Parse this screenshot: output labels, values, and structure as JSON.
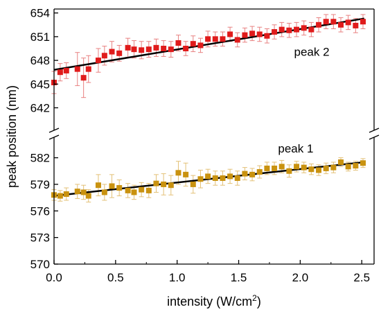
{
  "chart_data": {
    "type": "scatter",
    "xlabel": {
      "main": "intensity (W/cm",
      "sup": "2",
      "close": ")"
    },
    "ylabel": "peak position (nm)",
    "xlim": [
      0,
      2.6
    ],
    "x_ticks": [
      0.0,
      0.5,
      1.0,
      1.5,
      2.0,
      2.5
    ],
    "x_tick_labels": [
      "0.0",
      "0.5",
      "1.0",
      "1.5",
      "2.0",
      "2.5"
    ],
    "y_axis_break": true,
    "upper_panel": {
      "ylim": [
        639.5,
        654.5
      ],
      "y_ticks": [
        642,
        645,
        648,
        651,
        654
      ],
      "y_tick_labels": [
        "642",
        "645",
        "648",
        "651",
        "654"
      ]
    },
    "lower_panel": {
      "ylim": [
        570,
        584
      ],
      "y_ticks": [
        570,
        573,
        576,
        579,
        582
      ],
      "y_tick_labels": [
        "570",
        "573",
        "576",
        "579",
        "582"
      ]
    },
    "series": [
      {
        "name": "peak 2",
        "panel": "upper",
        "color": "#e01b1b",
        "error_color": "#e88080",
        "x": [
          0.0,
          0.05,
          0.1,
          0.19,
          0.24,
          0.28,
          0.36,
          0.41,
          0.47,
          0.53,
          0.6,
          0.65,
          0.71,
          0.77,
          0.83,
          0.89,
          0.95,
          1.01,
          1.07,
          1.13,
          1.19,
          1.25,
          1.31,
          1.37,
          1.43,
          1.49,
          1.55,
          1.61,
          1.67,
          1.73,
          1.79,
          1.85,
          1.91,
          1.97,
          2.03,
          2.09,
          2.15,
          2.21,
          2.27,
          2.33,
          2.39,
          2.45,
          2.51
        ],
        "y": [
          645.2,
          646.5,
          646.7,
          646.9,
          645.8,
          646.9,
          648.0,
          648.6,
          649.1,
          648.9,
          649.6,
          649.4,
          649.3,
          649.4,
          649.6,
          649.5,
          649.4,
          650.2,
          649.5,
          650.1,
          649.9,
          650.7,
          650.7,
          650.7,
          651.3,
          650.6,
          651.2,
          651.4,
          651.3,
          651.1,
          651.6,
          651.9,
          651.8,
          651.9,
          652.1,
          651.9,
          652.5,
          652.9,
          652.9,
          652.5,
          652.8,
          652.4,
          652.9
        ],
        "error": [
          1.4,
          1.1,
          1.0,
          2.1,
          2.5,
          1.7,
          1.5,
          1.2,
          1.3,
          1.0,
          1.2,
          1.1,
          1.1,
          1.0,
          1.1,
          1.0,
          1.0,
          1.0,
          0.9,
          1.0,
          0.9,
          1.0,
          0.9,
          0.9,
          0.9,
          0.9,
          0.9,
          0.9,
          0.9,
          0.9,
          0.9,
          0.9,
          0.9,
          0.9,
          0.9,
          0.9,
          0.9,
          0.9,
          0.9,
          0.9,
          0.9,
          0.9,
          0.9
        ],
        "fit": {
          "x": [
            0.0,
            2.52
          ],
          "y": [
            646.8,
            653.3
          ]
        }
      },
      {
        "name": "peak 1",
        "panel": "lower",
        "color": "#c9920f",
        "error_color": "#e3c076",
        "x": [
          0.0,
          0.05,
          0.1,
          0.19,
          0.24,
          0.28,
          0.36,
          0.41,
          0.47,
          0.53,
          0.6,
          0.65,
          0.71,
          0.77,
          0.83,
          0.89,
          0.95,
          1.01,
          1.07,
          1.13,
          1.19,
          1.25,
          1.31,
          1.37,
          1.43,
          1.49,
          1.55,
          1.61,
          1.67,
          1.73,
          1.79,
          1.85,
          1.91,
          1.97,
          2.03,
          2.09,
          2.15,
          2.21,
          2.27,
          2.33,
          2.39,
          2.45,
          2.51
        ],
        "y": [
          577.8,
          577.7,
          577.9,
          578.2,
          578.1,
          577.7,
          578.9,
          578.1,
          578.8,
          578.6,
          578.3,
          578.1,
          578.4,
          578.3,
          579.1,
          579.0,
          578.9,
          580.3,
          580.1,
          579.0,
          579.6,
          579.9,
          579.7,
          579.7,
          579.9,
          579.7,
          580.2,
          580.1,
          580.4,
          580.8,
          580.8,
          581.0,
          580.5,
          581.0,
          580.9,
          580.7,
          580.6,
          580.8,
          580.9,
          581.5,
          581.0,
          581.1,
          581.4
        ],
        "error": [
          0.6,
          0.6,
          0.7,
          0.8,
          0.8,
          0.7,
          1.2,
          0.9,
          1.3,
          0.9,
          0.8,
          0.8,
          0.8,
          0.8,
          1.0,
          1.2,
          1.1,
          1.3,
          1.3,
          1.0,
          1.0,
          0.8,
          0.8,
          0.8,
          0.8,
          0.8,
          0.7,
          0.7,
          0.7,
          0.7,
          0.7,
          0.7,
          0.7,
          0.6,
          0.6,
          0.6,
          0.6,
          0.6,
          0.6,
          0.5,
          0.5,
          0.5,
          0.5
        ],
        "fit": {
          "x": [
            0.0,
            2.52
          ],
          "y": [
            577.7,
            581.5
          ]
        }
      }
    ],
    "annotations": [
      {
        "text": "peak 2",
        "x": 1.95,
        "y": 648.6,
        "panel": "upper"
      },
      {
        "text": "peak 1",
        "x": 1.82,
        "y": 582.6,
        "panel": "lower"
      }
    ],
    "grid": false,
    "legend": "none"
  }
}
